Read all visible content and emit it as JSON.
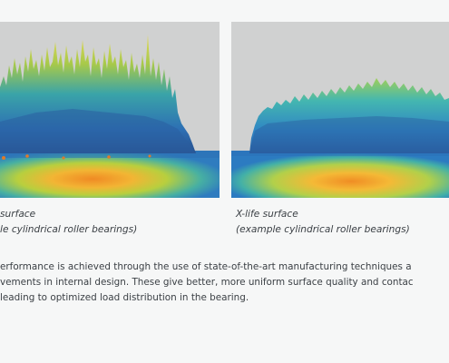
{
  "figures": [
    {
      "caption_title": "surface",
      "caption_subtitle": "le cylindrical roller bearings)"
    },
    {
      "caption_title": "X-life surface",
      "caption_subtitle": "(example cylindrical roller bearings)"
    }
  ],
  "description": {
    "lines": [
      "erformance is achieved through the use of state-of-the-art manufacturing techniques a",
      "vements in internal design. These give better, more uniform surface quality and contac",
      " leading to optimized load distribution in the bearing."
    ]
  },
  "colors": {
    "background": "#f6f7f7",
    "plot_background": "#d0d1d1",
    "text": "#3a3f44"
  }
}
